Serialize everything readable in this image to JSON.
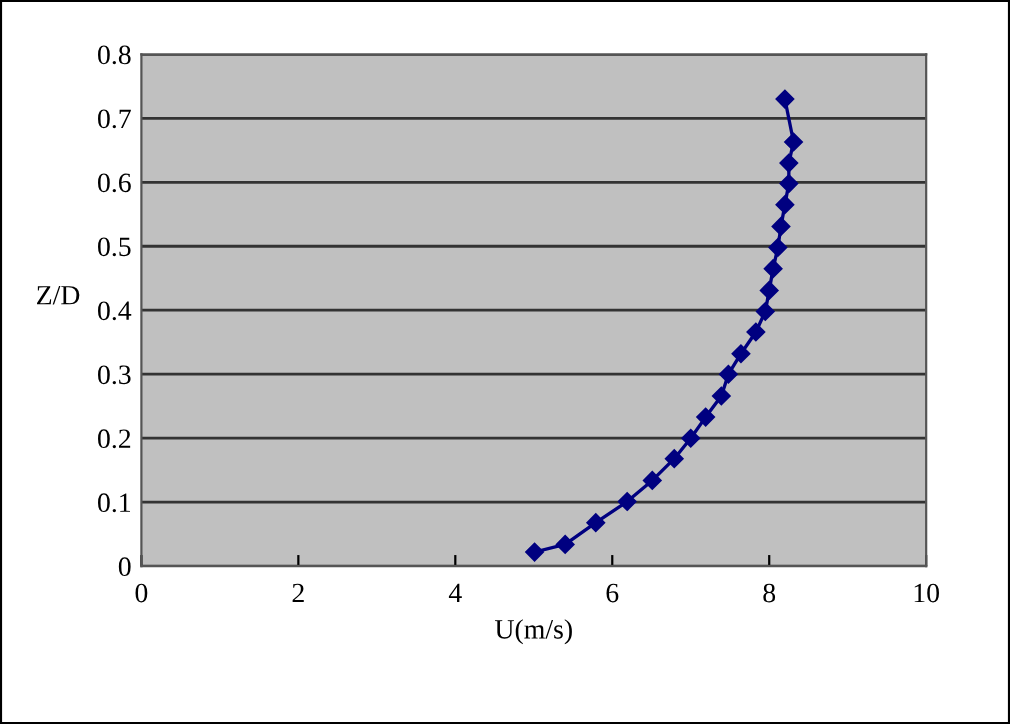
{
  "chart_data": {
    "type": "line",
    "xlabel": "U(m/s)",
    "ylabel": "Z/D",
    "xlim": [
      0,
      10
    ],
    "xticks": [
      0,
      2,
      4,
      6,
      8,
      10
    ],
    "ylim": [
      0,
      0.8
    ],
    "yticks": [
      0,
      0.1,
      0.2,
      0.3,
      0.4,
      0.5,
      0.6,
      0.7,
      0.8
    ],
    "grid": "y",
    "marker": "diamond",
    "line_style": "solid",
    "series": [
      {
        "color": "#000080",
        "x": [
          5.01,
          5.4,
          5.79,
          6.19,
          6.51,
          6.79,
          7.0,
          7.19,
          7.39,
          7.48,
          7.64,
          7.83,
          7.95,
          8.0,
          8.05,
          8.11,
          8.15,
          8.2,
          8.25,
          8.25,
          8.31,
          8.2
        ],
        "values": [
          0.022,
          0.034,
          0.068,
          0.101,
          0.134,
          0.168,
          0.2,
          0.233,
          0.266,
          0.3,
          0.332,
          0.366,
          0.398,
          0.431,
          0.465,
          0.498,
          0.531,
          0.565,
          0.598,
          0.63,
          0.663,
          0.73
        ]
      }
    ]
  }
}
